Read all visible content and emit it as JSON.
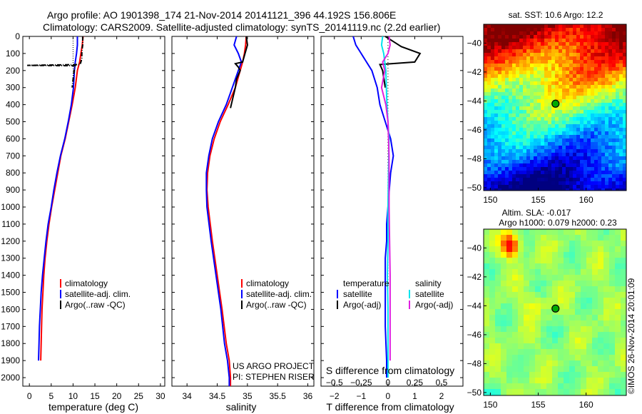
{
  "header": {
    "line1": "Argo profile: AO 1901398_174 21-Nov-2014 20141121_396 44.192S 156.806E",
    "line2": "Climatology: CARS2009. Satellite-adjusted climatology: synTS_20141119.nc (2.2d earlier)"
  },
  "sst_title": "sat. SST: 10.6 Argo: 12.2",
  "sla_title1": "Altim. SLA: -0.017",
  "sla_title2": "Argo h1000: 0.079 h2000: 0.23",
  "credit": "©IMOS 26-Nov-2014 20:01:09",
  "project": {
    "line1": "US ARGO PROJECT",
    "line2": "PI: STEPHEN RISER"
  },
  "legend": {
    "climatology": "climatology",
    "satellite_clim": "satellite-adj. clim.",
    "argo_raw": "Argo(..raw -QC)",
    "temperature": "temperature",
    "salinity": "salinity",
    "satellite": "satellite",
    "argo_adj": "Argo(-adj)"
  },
  "colors": {
    "climatology": "#ff0000",
    "satellite_clim": "#0000ff",
    "argo": "#000000",
    "salinity_satellite": "#00e5ee",
    "salinity_argo": "#e020e0",
    "station_marker": "#00aa00"
  },
  "chart_data": [
    {
      "type": "line",
      "xlabel": "temperature (deg C)",
      "ylim": [
        0,
        2050
      ],
      "xlim": [
        -1.5,
        31
      ],
      "xticks": [
        0,
        5,
        10,
        15,
        20,
        25,
        30
      ],
      "yticks": [
        0,
        100,
        200,
        300,
        400,
        500,
        600,
        700,
        800,
        900,
        1000,
        1100,
        1200,
        1300,
        1400,
        1500,
        1600,
        1700,
        1800,
        1900,
        2000
      ],
      "grid": false,
      "legend_position": "lower-center",
      "series": [
        {
          "name": "climatology",
          "color": "#ff0000",
          "x": [
            12.3,
            12.1,
            11.8,
            11.5,
            11.0,
            10.5,
            9.8,
            9.0,
            8.2,
            7.2,
            6.5,
            5.8,
            5.1,
            4.5,
            4.0,
            3.6,
            3.3,
            3.1,
            2.9,
            2.8,
            2.7,
            2.6
          ],
          "y": [
            0,
            50,
            100,
            150,
            200,
            300,
            400,
            500,
            600,
            700,
            800,
            900,
            1000,
            1100,
            1200,
            1300,
            1400,
            1500,
            1600,
            1700,
            1800,
            1900
          ]
        },
        {
          "name": "satellite-adj. clim.",
          "color": "#0000ff",
          "x": [
            11.0,
            11.0,
            10.8,
            10.5,
            10.3,
            10.1,
            9.6,
            8.9,
            8.1,
            7.1,
            6.3,
            5.6,
            5.0,
            4.3,
            3.8,
            3.4,
            3.0,
            2.7,
            2.5,
            2.3,
            2.2,
            2.1
          ],
          "y": [
            0,
            50,
            100,
            150,
            200,
            300,
            400,
            500,
            600,
            700,
            800,
            900,
            1000,
            1100,
            1200,
            1300,
            1400,
            1500,
            1600,
            1700,
            1800,
            1900
          ]
        },
        {
          "name": "Argo(..raw -QC)",
          "color": "#000000",
          "x": [
            12.2,
            12.2,
            12.0,
            12.0,
            11.8,
            11.6,
            -0.5,
            10.5,
            10.3,
            10.1,
            9.8
          ],
          "y": [
            0,
            50,
            90,
            130,
            150,
            165,
            170,
            172,
            190,
            230,
            300
          ]
        }
      ]
    },
    {
      "type": "line",
      "xlabel": "salinity",
      "ylim": [
        0,
        2050
      ],
      "xlim": [
        33.75,
        36.1
      ],
      "xticks": [
        34,
        34.5,
        35,
        35.5,
        36
      ],
      "grid": false,
      "legend_position": "lower-center",
      "series": [
        {
          "name": "climatology",
          "color": "#ff0000",
          "x": [
            34.98,
            34.97,
            34.95,
            34.92,
            34.88,
            34.8,
            34.68,
            34.55,
            34.45,
            34.38,
            34.34,
            34.33,
            34.35,
            34.42,
            34.5,
            34.58,
            34.65,
            34.7,
            34.72,
            34.72
          ],
          "y": [
            0,
            50,
            100,
            150,
            200,
            300,
            400,
            500,
            600,
            700,
            800,
            900,
            1000,
            1200,
            1400,
            1600,
            1800,
            1900,
            2000,
            2050
          ]
        },
        {
          "name": "satellite-adj. clim.",
          "color": "#0000ff",
          "x": [
            34.82,
            34.78,
            34.85,
            34.9,
            34.85,
            34.75,
            34.65,
            34.52,
            34.42,
            34.36,
            34.32,
            34.32,
            34.33,
            34.4,
            34.48,
            34.56,
            34.62,
            34.67,
            34.7,
            34.7
          ],
          "y": [
            0,
            50,
            100,
            150,
            200,
            300,
            400,
            500,
            600,
            700,
            800,
            900,
            1000,
            1200,
            1400,
            1600,
            1800,
            1900,
            2000,
            2050
          ]
        },
        {
          "name": "Argo(..raw -QC)",
          "color": "#000000",
          "x": [
            34.98,
            35.0,
            34.96,
            34.92,
            34.8,
            34.85,
            34.88,
            34.82,
            34.8,
            34.74,
            34.72
          ],
          "y": [
            0,
            50,
            100,
            150,
            160,
            180,
            200,
            250,
            300,
            390,
            420
          ]
        }
      ]
    },
    {
      "type": "line",
      "xlabel": "T difference from climatology",
      "x2label": "S difference from climatology",
      "ylim": [
        0,
        2050
      ],
      "xlim": [
        -2.5,
        2.8
      ],
      "xticks": [
        -2,
        -1,
        0,
        1,
        2
      ],
      "x2lim": [
        -0.625,
        0.7
      ],
      "x2ticks": [
        -0.5,
        -0.25,
        0,
        0.25,
        0.5
      ],
      "grid": false,
      "legend_position": "lower-center",
      "series": [
        {
          "name": "satellite",
          "group": "temperature",
          "color": "#0000ff",
          "x": [
            -1.3,
            -1.2,
            -1.0,
            -0.8,
            -0.6,
            -0.4,
            -0.3,
            -0.1,
            0.1,
            0.2,
            0.1,
            0.05,
            0.0,
            -0.05,
            -0.05,
            -0.1,
            -0.1,
            -0.1,
            -0.05,
            -0.05
          ],
          "y": [
            0,
            50,
            100,
            150,
            200,
            300,
            400,
            500,
            600,
            700,
            800,
            900,
            1000,
            1100,
            1200,
            1300,
            1500,
            1700,
            1900,
            2000
          ]
        },
        {
          "name": "Argo(-adj)",
          "group": "temperature",
          "color": "#000000",
          "x": [
            -0.1,
            0.2,
            0.5,
            1.2,
            1.0,
            -0.3,
            -0.2,
            -0.1
          ],
          "y": [
            0,
            30,
            60,
            100,
            150,
            165,
            200,
            300
          ]
        },
        {
          "name": "satellite",
          "group": "salinity",
          "color": "#00e5ee",
          "x": [
            -0.05,
            -0.06,
            -0.04,
            -0.03,
            -0.02,
            -0.015,
            -0.01,
            0.0,
            0.01,
            0.005,
            0.0,
            0.0,
            -0.005,
            0.0,
            0.0,
            0.0
          ],
          "y": [
            0,
            50,
            100,
            150,
            200,
            300,
            400,
            500,
            600,
            800,
            1000,
            1200,
            1400,
            1600,
            1800,
            2000
          ]
        },
        {
          "name": "Argo(-adj)",
          "group": "salinity",
          "color": "#e020e0",
          "x": [
            0.01,
            0.02,
            0.0,
            -0.05,
            -0.03,
            -0.06,
            -0.02,
            0.0,
            0.01,
            0.01,
            0.02,
            0.02,
            0.02
          ],
          "y": [
            0,
            50,
            100,
            150,
            200,
            300,
            400,
            500,
            700,
            1000,
            1400,
            1700,
            1900
          ]
        }
      ]
    },
    {
      "type": "heatmap",
      "title": "sat. SST: 10.6 Argo: 12.2",
      "xlim": [
        149.3,
        164.2
      ],
      "ylim": [
        -50.2,
        -38.7
      ],
      "xticks": [
        150,
        155,
        160
      ],
      "yticks": [
        -40,
        -42,
        -44,
        -46,
        -48,
        -50
      ],
      "station": {
        "lon": 156.806,
        "lat": -44.192
      }
    },
    {
      "type": "heatmap",
      "title": "Altim. SLA: -0.017",
      "subtitle": "Argo h1000: 0.079 h2000: 0.23",
      "xlim": [
        149.3,
        164.2
      ],
      "ylim": [
        -50.2,
        -38.7
      ],
      "xticks": [
        150,
        155,
        160
      ],
      "yticks": [
        -40,
        -42,
        -44,
        -46,
        -48,
        -50
      ],
      "station": {
        "lon": 156.806,
        "lat": -44.192
      }
    }
  ]
}
